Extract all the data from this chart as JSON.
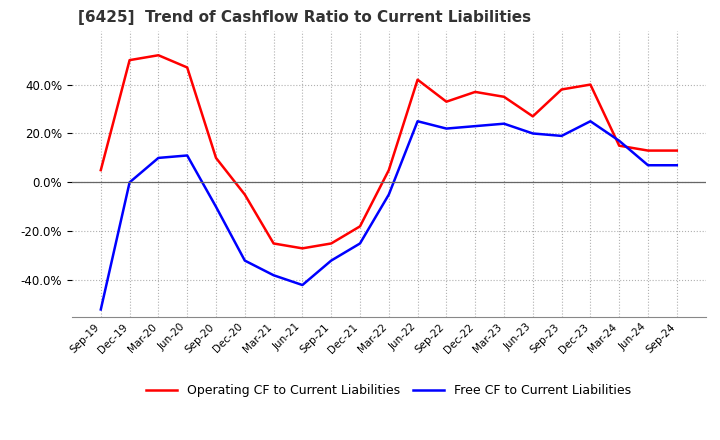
{
  "title": "[6425]  Trend of Cashflow Ratio to Current Liabilities",
  "x_labels": [
    "Sep-19",
    "Dec-19",
    "Mar-20",
    "Jun-20",
    "Sep-20",
    "Dec-20",
    "Mar-21",
    "Jun-21",
    "Sep-21",
    "Dec-21",
    "Mar-22",
    "Jun-22",
    "Sep-22",
    "Dec-22",
    "Mar-23",
    "Jun-23",
    "Sep-23",
    "Dec-23",
    "Mar-24",
    "Jun-24",
    "Sep-24"
  ],
  "operating_cf": [
    5.0,
    50.0,
    52.0,
    47.0,
    10.0,
    -5.0,
    -25.0,
    -27.0,
    -25.0,
    -18.0,
    5.0,
    42.0,
    33.0,
    37.0,
    35.0,
    27.0,
    38.0,
    40.0,
    15.0,
    13.0,
    13.0
  ],
  "free_cf": [
    -52.0,
    0.0,
    10.0,
    11.0,
    -10.0,
    -32.0,
    -38.0,
    -42.0,
    -32.0,
    -25.0,
    -5.0,
    25.0,
    22.0,
    23.0,
    24.0,
    20.0,
    19.0,
    25.0,
    17.0,
    7.0,
    7.0
  ],
  "operating_color": "#ff0000",
  "free_color": "#0000ff",
  "ylim": [
    -55,
    62
  ],
  "yticks": [
    -40,
    -20,
    0,
    20,
    40
  ],
  "background_color": "#ffffff",
  "grid_color": "#b0b0b0",
  "title_fontsize": 11,
  "legend_labels": [
    "Operating CF to Current Liabilities",
    "Free CF to Current Liabilities"
  ]
}
